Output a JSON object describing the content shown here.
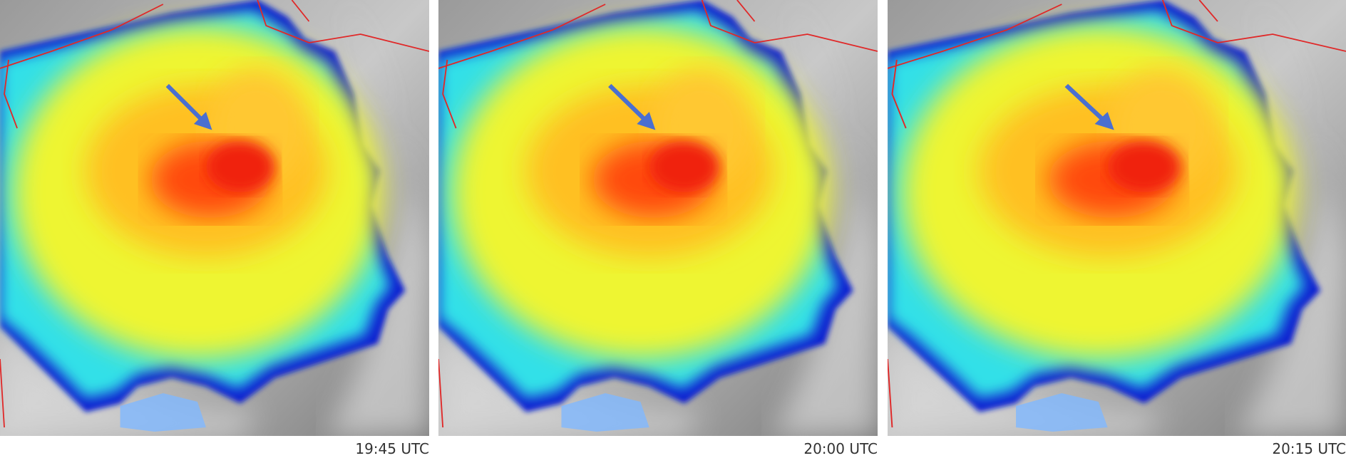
{
  "panels": [
    {
      "label": "19:45 UTC"
    },
    {
      "label": "20:00 UTC"
    },
    {
      "label": "20:15 UTC"
    }
  ]
}
